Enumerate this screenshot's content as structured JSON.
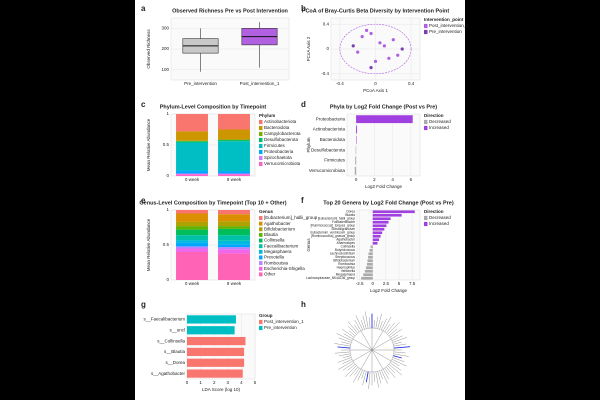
{
  "panel_labels": [
    "a",
    "b",
    "c",
    "d",
    "e",
    "f",
    "g",
    "h"
  ],
  "chart_data": [
    {
      "type": "box",
      "title": "Observed Richness Pre vs Post Intervention",
      "y_label": "Observed Richness",
      "categories": [
        "Pre_intervention",
        "Post_intervention_1"
      ],
      "boxes": [
        [
          90,
          180,
          215,
          250,
          300
        ],
        [
          110,
          220,
          260,
          300,
          330
        ]
      ],
      "colors": [
        "#c8c8c8",
        "#b060e0"
      ],
      "ylim": [
        50,
        350
      ],
      "yticks": [
        100,
        200,
        300
      ]
    },
    {
      "type": "scatter",
      "title": "PCoA of Bray-Curtis Beta Diversity by Intervention Point",
      "x_label": "PCoA Axis 1",
      "y_label": "PCoA Axis 2",
      "legend_title": "Intervention_point",
      "xlim": [
        -0.5,
        0.5
      ],
      "ylim": [
        -0.5,
        0.5
      ],
      "xticks": [
        -0.4,
        0,
        0.4
      ],
      "yticks": [
        -0.4,
        0,
        0.4
      ],
      "series": [
        {
          "name": "Post_intervention_1",
          "color": "#b060e0",
          "x": [
            -0.15,
            -0.05,
            0.05,
            0.1,
            0.2,
            -0.2,
            0.0,
            0.15,
            -0.1,
            0.25
          ],
          "y": [
            0.2,
            0.25,
            0.1,
            0.05,
            0.15,
            -0.05,
            -0.2,
            -0.15,
            0.3,
            -0.1
          ]
        },
        {
          "name": "Pre_intervention",
          "color": "#7a3fb0",
          "x": [
            -0.25,
            0.3,
            -0.05
          ],
          "y": [
            0.05,
            0.0,
            -0.3
          ]
        }
      ]
    },
    {
      "type": "stacked",
      "title": "Phylum-Level Composition by Timepoint",
      "y_label": "Mean Relative Abundance",
      "legend_title": "Phylum",
      "categories": [
        "0 week",
        "8 week"
      ],
      "ylim": [
        0,
        1
      ],
      "yticks": [
        0,
        0.5,
        1
      ],
      "series": [
        {
          "name": "Actinobacteriota",
          "color": "#F8766D",
          "values": [
            0.28,
            0.25
          ]
        },
        {
          "name": "Bacteroidota",
          "color": "#CD9600",
          "values": [
            0.15,
            0.16
          ]
        },
        {
          "name": "Campylobacterota",
          "color": "#7CAE00",
          "values": [
            0.01,
            0.01
          ]
        },
        {
          "name": "Desulfobacterota",
          "color": "#00BE67",
          "values": [
            0.02,
            0.02
          ]
        },
        {
          "name": "Firmicutes",
          "color": "#00BFC4",
          "values": [
            0.45,
            0.48
          ]
        },
        {
          "name": "Proteobacteria",
          "color": "#00A9FF",
          "values": [
            0.05,
            0.04
          ]
        },
        {
          "name": "Spirochaetota",
          "color": "#C77CFF",
          "values": [
            0.01,
            0.01
          ]
        },
        {
          "name": "Verrucomicrobiota",
          "color": "#FF61CC",
          "values": [
            0.03,
            0.03
          ]
        }
      ]
    },
    {
      "type": "hbar",
      "title": "Phyla by Log2 Fold Change (Post vs Pre)",
      "x_label": "Log2 Fold Change",
      "y_label": "Phylum",
      "legend_title": "Direction",
      "legend": [
        {
          "name": "Decreased",
          "color": "#aaaaaa"
        },
        {
          "name": "Increased",
          "color": "#a040e0"
        }
      ],
      "categories": [
        "Proteobacteria",
        "Actinobacteriota",
        "Bacteroidota",
        "Desulfobacterota",
        "Firmicutes",
        "Verrucomicrobiota"
      ],
      "values": [
        6.2,
        0.1,
        0.05,
        -0.05,
        -0.1,
        -0.15
      ],
      "colors": [
        "#a040e0",
        "#a040e0",
        "#a040e0",
        "#aaaaaa",
        "#aaaaaa",
        "#aaaaaa"
      ],
      "xlim": [
        -1,
        7
      ],
      "xticks": [
        0,
        2,
        4,
        6
      ]
    },
    {
      "type": "stacked",
      "title": "Genus-Level Composition by Timepoint (Top 10 + Other)",
      "y_label": "Mean Relative Abundance",
      "legend_title": "Genus",
      "categories": [
        "0 week",
        "8 week"
      ],
      "ylim": [
        0,
        1
      ],
      "yticks": [
        0,
        0.5,
        1
      ],
      "series": [
        {
          "name": "[Eubacterium]_hallii_group",
          "color": "#F8766D",
          "values": [
            0.05,
            0.06
          ]
        },
        {
          "name": "Agathobacter",
          "color": "#DB8E00",
          "values": [
            0.12,
            0.1
          ]
        },
        {
          "name": "Bifidobacterium",
          "color": "#AEA200",
          "values": [
            0.06,
            0.07
          ]
        },
        {
          "name": "Blautia",
          "color": "#64B200",
          "values": [
            0.05,
            0.04
          ]
        },
        {
          "name": "Collinsella",
          "color": "#00BD5C",
          "values": [
            0.08,
            0.09
          ]
        },
        {
          "name": "Faecalibacterium",
          "color": "#00C1A7",
          "values": [
            0.07,
            0.08
          ]
        },
        {
          "name": "Megasphaera",
          "color": "#00BADE",
          "values": [
            0.04,
            0.05
          ]
        },
        {
          "name": "Prevotella",
          "color": "#00A6FF",
          "values": [
            0.05,
            0.04
          ]
        },
        {
          "name": "Romboutsia",
          "color": "#B385FF",
          "values": [
            0.03,
            0.03
          ]
        },
        {
          "name": "Escherichia-Shigella",
          "color": "#EF67EB",
          "values": [
            0.05,
            0.06
          ]
        },
        {
          "name": "Other",
          "color": "#FF63B6",
          "values": [
            0.4,
            0.38
          ]
        }
      ]
    },
    {
      "type": "hbar",
      "title": "Top 20 Genera by Log2 Fold Change (Post vs Pre)",
      "x_label": "Log2 Fold Change",
      "y_label": "Genus",
      "legend_title": "Direction",
      "legend": [
        {
          "name": "Decreased",
          "color": "#aaaaaa"
        },
        {
          "name": "Increased",
          "color": "#a040e0"
        }
      ],
      "categories": [
        "Dorea",
        "Blautia",
        "[Eubacterium]_hallii_group",
        "Fusicatenibacter",
        "[Ruminococcus]_torques_group",
        "Subdoligranulum",
        "Eubacterium_ventriosum_group",
        "[Ruminococcus]_gnavus_group",
        "Agathobacter",
        "Anaerostipes",
        "Collinsella",
        "Butyricicoccus",
        "Lachnoclostridium",
        "Streptococcus",
        "Bifidobacterium",
        "Romboutsia",
        "Haemophilus",
        "Veillonella",
        "Megasphaera",
        "Lachnospiraceae_NK4A136_group"
      ],
      "values": [
        8.0,
        5.5,
        3.4,
        3.0,
        2.6,
        2.2,
        1.8,
        1.5,
        1.2,
        0.9,
        -0.4,
        -0.6,
        -0.8,
        -0.9,
        -1.0,
        -1.1,
        -1.3,
        -1.5,
        -1.8,
        -2.2
      ],
      "colors": [
        "#a040e0",
        "#a040e0",
        "#a040e0",
        "#a040e0",
        "#a040e0",
        "#a040e0",
        "#a040e0",
        "#a040e0",
        "#a040e0",
        "#a040e0",
        "#aaaaaa",
        "#aaaaaa",
        "#aaaaaa",
        "#aaaaaa",
        "#aaaaaa",
        "#aaaaaa",
        "#aaaaaa",
        "#aaaaaa",
        "#aaaaaa",
        "#aaaaaa"
      ],
      "xlim": [
        -3,
        9
      ],
      "xticks": [
        -2.5,
        0,
        2.5,
        5,
        7.5
      ]
    },
    {
      "type": "hbar",
      "title": "",
      "x_label": "LDA Score (log 10)",
      "legend_title": "Group",
      "legend": [
        {
          "name": "Post_intervention_1",
          "color": "#F8766D"
        },
        {
          "name": "Pre_intervention",
          "color": "#00BFC4"
        }
      ],
      "categories": [
        "s__Faecalibacterium",
        "s__uncl",
        "s__Collinsella",
        "s__Blautia",
        "s__Dorea",
        "s__Agathobacter"
      ],
      "values": [
        3.6,
        3.5,
        4.3,
        4.2,
        4.2,
        4.1
      ],
      "colors": [
        "#00BFC4",
        "#00BFC4",
        "#F8766D",
        "#F8766D",
        "#F8766D",
        "#F8766D"
      ],
      "xlim": [
        0,
        5
      ],
      "xticks": [
        0,
        1,
        2,
        3,
        4,
        5
      ]
    }
  ]
}
